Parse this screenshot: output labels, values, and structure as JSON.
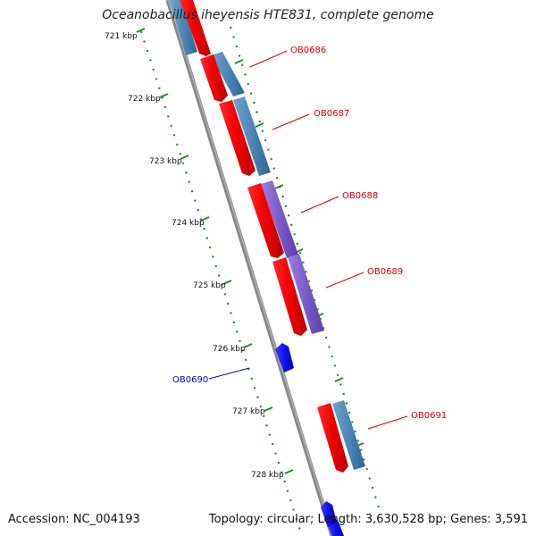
{
  "header": {
    "title": "Oceanobacillus iheyensis HTE831, complete genome"
  },
  "footer": {
    "accession": "Accession: NC_004193",
    "summary": "Topology: circular; Length: 3,630,528 bp; Genes: 3,591"
  },
  "scale": {
    "ticks": [
      "721 kbp",
      "722 kbp",
      "723 kbp",
      "724 kbp",
      "725 kbp",
      "726 kbp",
      "727 kbp",
      "728 kbp"
    ]
  },
  "genes": [
    {
      "name": "OB0686",
      "color": "#dd0000"
    },
    {
      "name": "OB0687",
      "color": "#dd0000"
    },
    {
      "name": "OB0688",
      "color": "#dd0000"
    },
    {
      "name": "OB0689",
      "color": "#dd0000"
    },
    {
      "name": "OB0690",
      "color": "#0000cc"
    },
    {
      "name": "OB0691",
      "color": "#dd0000"
    }
  ],
  "colors": {
    "forward_cds": "#ee1111",
    "reverse_cds": "#1a1aee",
    "cog_steel": "#4d86b8",
    "cog_purple": "#7a5cc8",
    "backbone": "#808080",
    "tick_dots": "#2a8a2a"
  }
}
